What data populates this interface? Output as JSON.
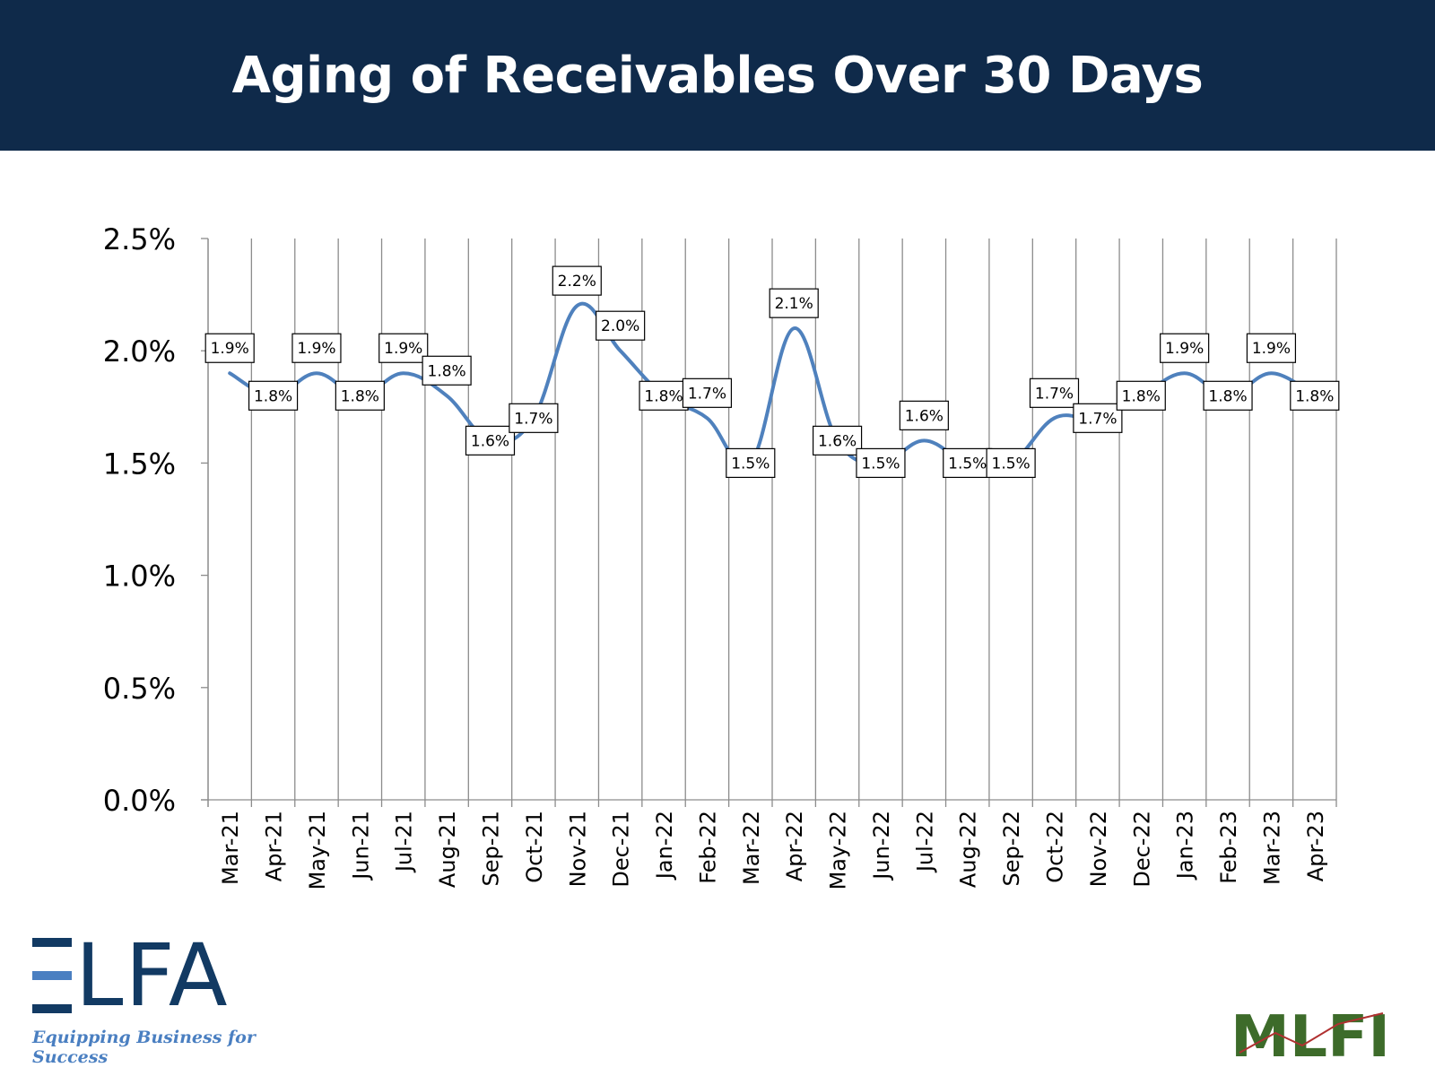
{
  "header": {
    "title": "Aging of Receivables Over 30 Days"
  },
  "colors": {
    "header_bg": "#0f2a4a",
    "line": "#4f81bd",
    "grid": "#8c8c8c",
    "elfa_dark": "#123a63",
    "elfa_light": "#4a7fc1",
    "mlfi_green": "#3d6b2a",
    "mlfi_red": "#b03030"
  },
  "logos": {
    "elfa": {
      "wordmark": "LFA",
      "tagline": "Equipping Business for Success"
    },
    "mlfi": {
      "wordmark": "MLFI"
    }
  },
  "chart_data": {
    "type": "line",
    "title": "Aging of Receivables Over 30 Days",
    "xlabel": "",
    "ylabel": "",
    "ylim": [
      0,
      0.025
    ],
    "y_ticks": [
      0,
      0.005,
      0.01,
      0.015,
      0.02,
      0.025
    ],
    "y_tick_labels": [
      "0.0%",
      "0.5%",
      "1.0%",
      "1.5%",
      "2.0%",
      "2.5%"
    ],
    "grid": "vertical",
    "legend": "none",
    "smooth": true,
    "categories": [
      "Mar-21",
      "Apr-21",
      "May-21",
      "Jun-21",
      "Jul-21",
      "Aug-21",
      "Sep-21",
      "Oct-21",
      "Nov-21",
      "Dec-21",
      "Jan-22",
      "Feb-22",
      "Mar-22",
      "Apr-22",
      "May-22",
      "Jun-22",
      "Jul-22",
      "Aug-22",
      "Sep-22",
      "Oct-22",
      "Nov-22",
      "Dec-22",
      "Jan-23",
      "Feb-23",
      "Mar-23",
      "Apr-23"
    ],
    "values": [
      0.019,
      0.018,
      0.019,
      0.018,
      0.019,
      0.018,
      0.016,
      0.017,
      0.022,
      0.02,
      0.018,
      0.017,
      0.015,
      0.021,
      0.016,
      0.015,
      0.016,
      0.015,
      0.015,
      0.017,
      0.017,
      0.018,
      0.019,
      0.018,
      0.019,
      0.018
    ],
    "data_labels": [
      "1.9%",
      "1.8%",
      "1.9%",
      "1.8%",
      "1.9%",
      "1.8%",
      "1.6%",
      "1.7%",
      "2.2%",
      "2.0%",
      "1.8%",
      "1.7%",
      "1.5%",
      "2.1%",
      "1.6%",
      "1.5%",
      "1.6%",
      "1.5%",
      "1.5%",
      "1.7%",
      "1.7%",
      "1.8%",
      "1.9%",
      "1.8%",
      "1.9%",
      "1.8%"
    ]
  }
}
